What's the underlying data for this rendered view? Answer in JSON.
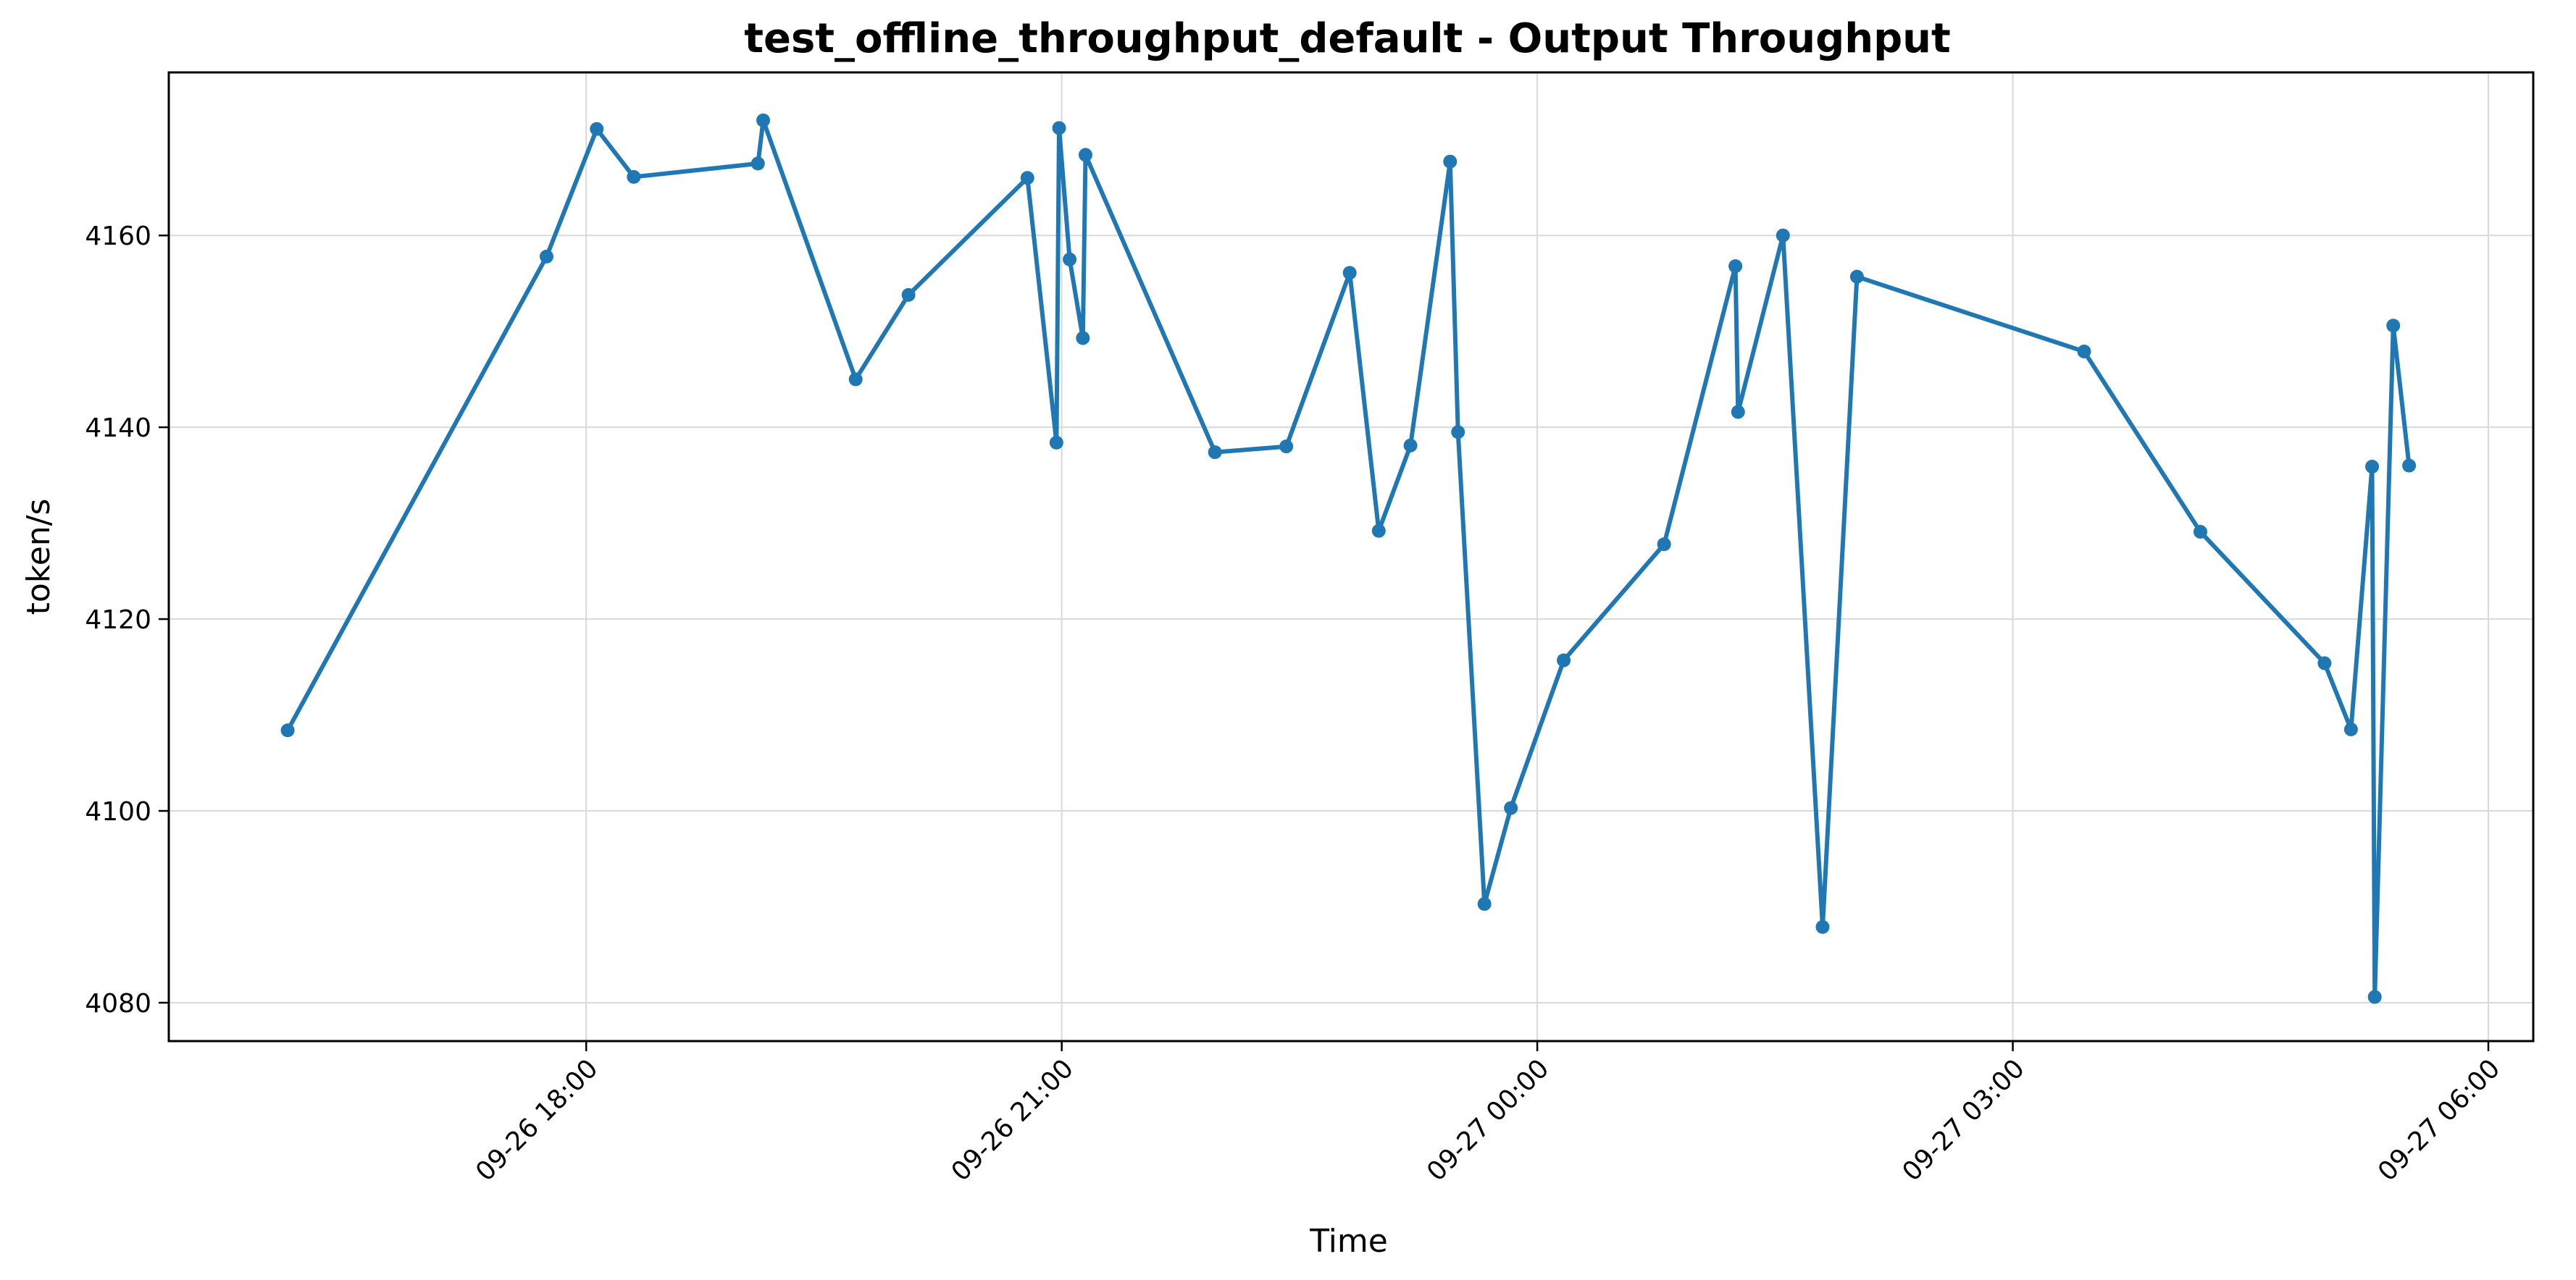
{
  "chart_data": {
    "type": "line",
    "title": "test_offline_throughput_default - Output Throughput",
    "xlabel": "Time",
    "ylabel": "token/s",
    "x_axis_type": "time",
    "x_tick_labels": [
      {
        "t": "2024-09-26T18:00",
        "label": "09-26 18:00"
      },
      {
        "t": "2024-09-26T21:00",
        "label": "09-26 21:00"
      },
      {
        "t": "2024-09-27T00:00",
        "label": "09-27 00:00"
      },
      {
        "t": "2024-09-27T03:00",
        "label": "09-27 03:00"
      },
      {
        "t": "2024-09-27T06:00",
        "label": "09-27 06:00"
      }
    ],
    "x_tick_rotation_deg": 45,
    "xlim": [
      "2024-09-26T15:22",
      "2024-09-27T06:17"
    ],
    "ylim": [
      4076,
      4177
    ],
    "y_ticks": [
      4080,
      4100,
      4120,
      4140,
      4160
    ],
    "grid": true,
    "color": "#1f77b4",
    "series": [
      {
        "points": [
          {
            "x": "2024-09-26T16:07",
            "y": 4108.4
          },
          {
            "x": "2024-09-26T17:45",
            "y": 4157.8
          },
          {
            "x": "2024-09-26T18:04",
            "y": 4171.1
          },
          {
            "x": "2024-09-26T18:18",
            "y": 4166.1
          },
          {
            "x": "2024-09-26T19:05",
            "y": 4167.5
          },
          {
            "x": "2024-09-26T19:07",
            "y": 4172.0
          },
          {
            "x": "2024-09-26T19:42",
            "y": 4145.0
          },
          {
            "x": "2024-09-26T20:02",
            "y": 4153.8
          },
          {
            "x": "2024-09-26T20:47",
            "y": 4166.0
          },
          {
            "x": "2024-09-26T20:58",
            "y": 4138.4
          },
          {
            "x": "2024-09-26T20:59",
            "y": 4171.2
          },
          {
            "x": "2024-09-26T21:03",
            "y": 4157.5
          },
          {
            "x": "2024-09-26T21:08",
            "y": 4149.3
          },
          {
            "x": "2024-09-26T21:09",
            "y": 4168.4
          },
          {
            "x": "2024-09-26T21:58",
            "y": 4137.4
          },
          {
            "x": "2024-09-26T22:25",
            "y": 4138.0
          },
          {
            "x": "2024-09-26T22:49",
            "y": 4156.1
          },
          {
            "x": "2024-09-26T23:00",
            "y": 4129.2
          },
          {
            "x": "2024-09-26T23:12",
            "y": 4138.1
          },
          {
            "x": "2024-09-26T23:27",
            "y": 4167.7
          },
          {
            "x": "2024-09-26T23:30",
            "y": 4139.5
          },
          {
            "x": "2024-09-26T23:40",
            "y": 4090.3
          },
          {
            "x": "2024-09-26T23:50",
            "y": 4100.3
          },
          {
            "x": "2024-09-27T00:10",
            "y": 4115.7
          },
          {
            "x": "2024-09-27T00:48",
            "y": 4127.8
          },
          {
            "x": "2024-09-27T01:15",
            "y": 4156.8
          },
          {
            "x": "2024-09-27T01:16",
            "y": 4141.6
          },
          {
            "x": "2024-09-27T01:33",
            "y": 4160.0
          },
          {
            "x": "2024-09-27T01:48",
            "y": 4087.9
          },
          {
            "x": "2024-09-27T02:01",
            "y": 4155.7
          },
          {
            "x": "2024-09-27T03:27",
            "y": 4147.9
          },
          {
            "x": "2024-09-27T04:11",
            "y": 4129.1
          },
          {
            "x": "2024-09-27T04:58",
            "y": 4115.4
          },
          {
            "x": "2024-09-27T05:08",
            "y": 4108.5
          },
          {
            "x": "2024-09-27T05:16",
            "y": 4135.9
          },
          {
            "x": "2024-09-27T05:17",
            "y": 4080.6
          },
          {
            "x": "2024-09-27T05:24",
            "y": 4150.6
          },
          {
            "x": "2024-09-27T05:30",
            "y": 4136.0
          }
        ]
      }
    ]
  }
}
